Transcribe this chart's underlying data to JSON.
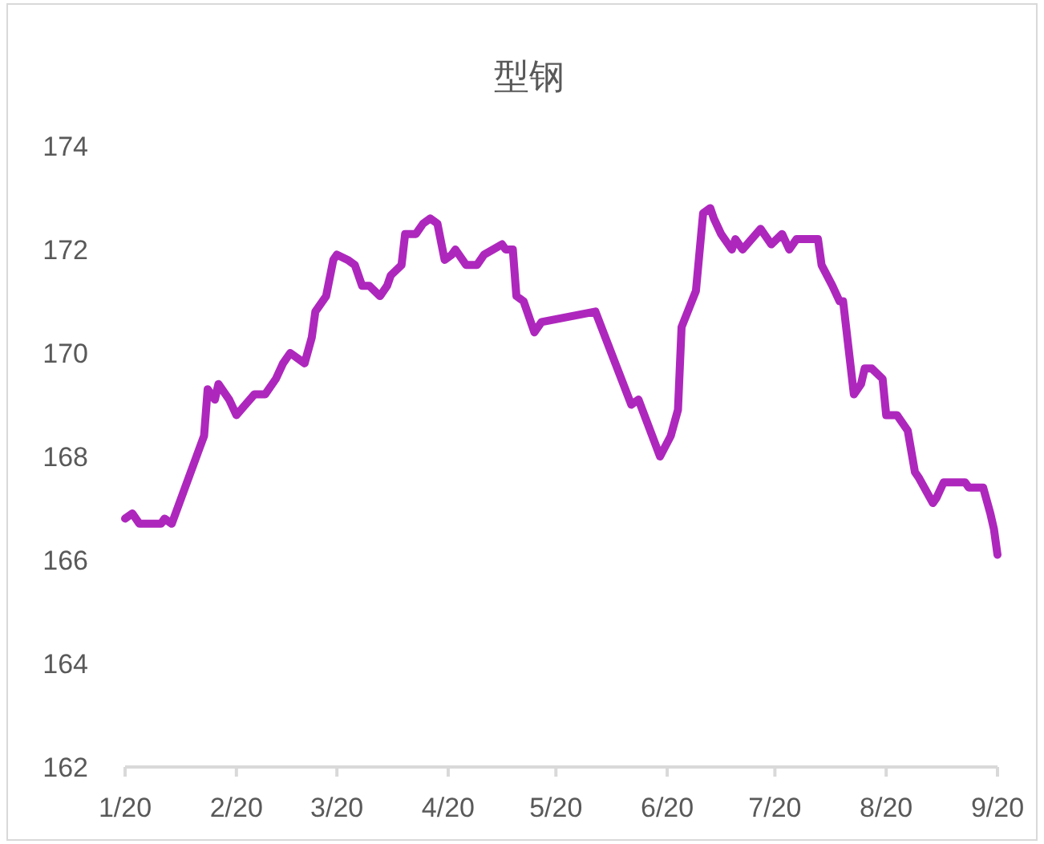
{
  "chart_data": {
    "type": "line",
    "title": "型钢",
    "x": [
      "--01-20",
      "--01-22",
      "--01-24",
      "--01-30",
      "--01-31",
      "--02-02",
      "--02-11",
      "--02-12",
      "--02-14",
      "--02-15",
      "--02-18",
      "--02-20",
      "--02-25",
      "--02-28",
      "--03-03",
      "--03-05",
      "--03-07",
      "--03-11",
      "--03-13",
      "--03-14",
      "--03-17",
      "--03-19",
      "--03-20",
      "--03-23",
      "--03-25",
      "--03-27",
      "--03-29",
      "--04-01",
      "--04-03",
      "--04-04",
      "--04-07",
      "--04-08",
      "--04-11",
      "--04-13",
      "--04-15",
      "--04-17",
      "--04-19",
      "--04-21",
      "--04-22",
      "--04-25",
      "--04-28",
      "--04-30",
      "--05-05",
      "--05-06",
      "--05-08",
      "--05-09",
      "--05-11",
      "--05-12",
      "--05-14",
      "--05-16",
      "--05-31",
      "--06-05",
      "--06-10",
      "--06-12",
      "--06-18",
      "--06-21",
      "--06-23",
      "--06-24",
      "--06-28",
      "--06-30",
      "--07-02",
      "--07-03",
      "--07-05",
      "--07-08",
      "--07-09",
      "--07-11",
      "--07-16",
      "--07-19",
      "--07-22",
      "--07-24",
      "--07-26",
      "--07-30",
      "--08-01",
      "--08-02",
      "--08-05",
      "--08-07",
      "--08-08",
      "--08-11",
      "--08-13",
      "--08-14",
      "--08-16",
      "--08-19",
      "--08-20",
      "--08-23",
      "--08-26",
      "--08-28",
      "--08-29",
      "--09-02",
      "--09-03",
      "--09-05",
      "--09-09",
      "--09-11",
      "--09-12",
      "--09-16",
      "--09-18",
      "--09-19",
      "--09-20"
    ],
    "values": [
      166.8,
      166.9,
      166.7,
      166.7,
      166.8,
      166.7,
      168.4,
      169.3,
      169.1,
      169.4,
      169.1,
      168.8,
      169.2,
      169.2,
      169.5,
      169.8,
      170.0,
      169.8,
      170.3,
      170.8,
      171.1,
      171.8,
      171.9,
      171.8,
      171.7,
      171.3,
      171.3,
      171.1,
      171.3,
      171.5,
      171.7,
      172.3,
      172.3,
      172.5,
      172.6,
      172.5,
      171.8,
      171.9,
      172.0,
      171.7,
      171.7,
      171.9,
      172.1,
      172.0,
      172.0,
      171.1,
      171.0,
      170.8,
      170.4,
      170.6,
      170.8,
      169.9,
      169.0,
      169.1,
      168.0,
      168.4,
      168.9,
      170.5,
      171.2,
      172.7,
      172.8,
      172.6,
      172.3,
      172.0,
      172.2,
      172.0,
      172.4,
      172.1,
      172.3,
      172.0,
      172.2,
      172.2,
      172.2,
      171.7,
      171.3,
      171.0,
      171.0,
      169.2,
      169.4,
      169.7,
      169.7,
      169.5,
      168.8,
      168.8,
      168.5,
      167.7,
      167.6,
      167.1,
      167.2,
      167.5,
      167.5,
      167.5,
      167.4,
      167.4,
      166.9,
      166.6,
      166.1
    ],
    "color": "#ae27bd",
    "line_style": "solid",
    "xlim": [
      "--01-20",
      "--09-20"
    ],
    "xticks": [
      {
        "value": "--01-20",
        "label": "1/20"
      },
      {
        "value": "--02-20",
        "label": "2/20"
      },
      {
        "value": "--03-20",
        "label": "3/20"
      },
      {
        "value": "--04-20",
        "label": "4/20"
      },
      {
        "value": "--05-20",
        "label": "5/20"
      },
      {
        "value": "--06-20",
        "label": "6/20"
      },
      {
        "value": "--07-20",
        "label": "7/20"
      },
      {
        "value": "--08-20",
        "label": "8/20"
      },
      {
        "value": "--09-20",
        "label": "9/20"
      }
    ],
    "ylim": [
      162,
      174
    ],
    "yticks": [
      162,
      164,
      166,
      168,
      170,
      172,
      174
    ]
  }
}
